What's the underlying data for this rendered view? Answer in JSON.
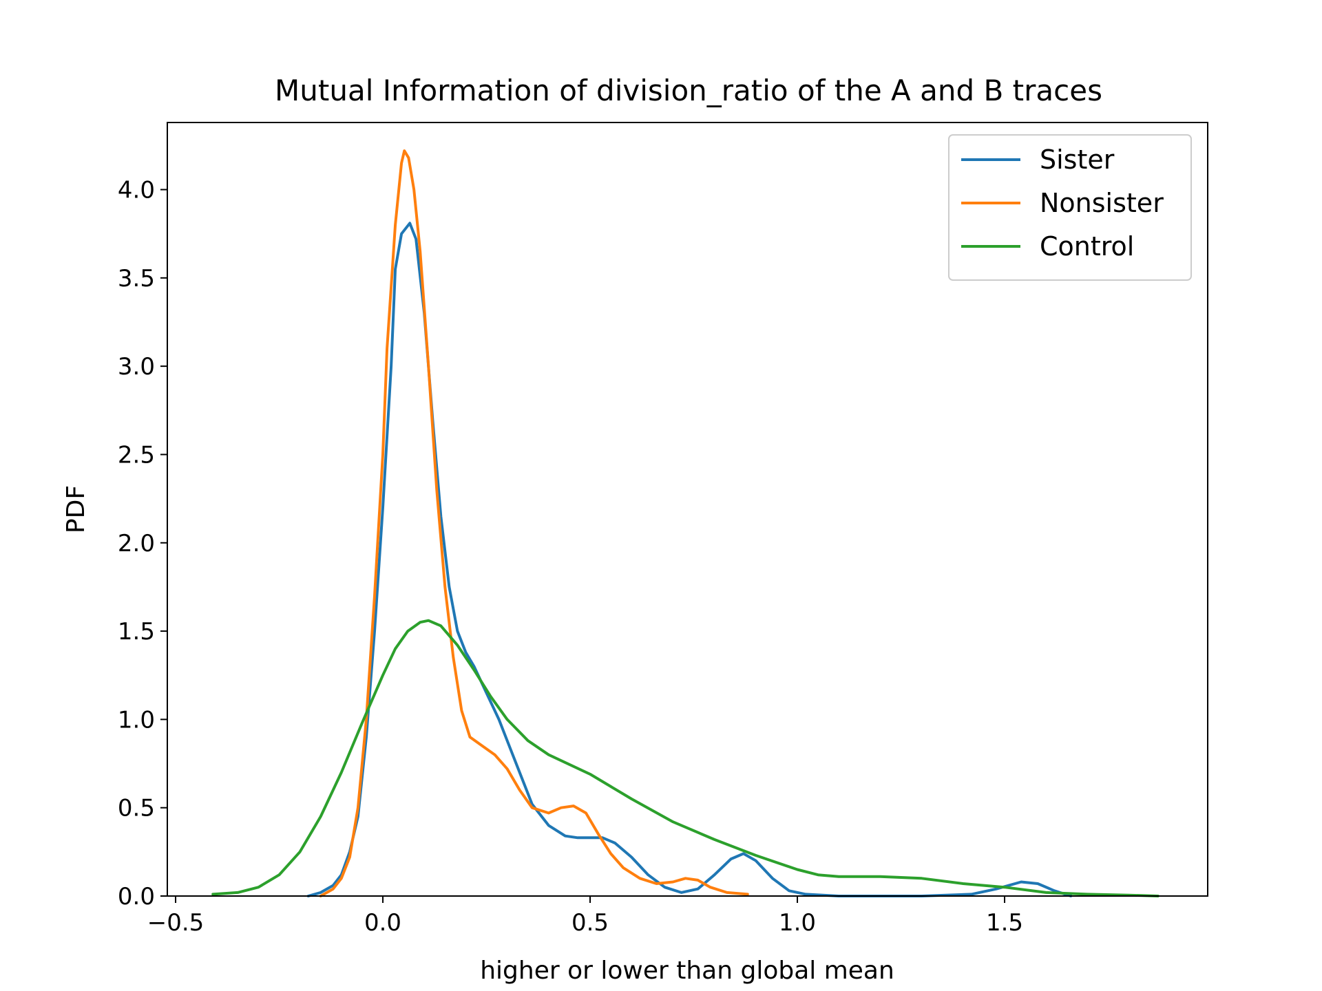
{
  "chart_data": {
    "type": "line",
    "title": "Mutual Information of division_ratio of the A and B traces",
    "xlabel": "higher or lower than global mean",
    "ylabel": "PDF",
    "xlim": [
      -0.52,
      1.99
    ],
    "ylim": [
      0,
      4.38
    ],
    "xticks": [
      -0.5,
      0.0,
      0.5,
      1.0,
      1.5
    ],
    "xtick_labels": [
      "−0.5",
      "0.0",
      "0.5",
      "1.0",
      "1.5"
    ],
    "yticks": [
      0.0,
      0.5,
      1.0,
      1.5,
      2.0,
      2.5,
      3.0,
      3.5,
      4.0
    ],
    "ytick_labels": [
      "0.0",
      "0.5",
      "1.0",
      "1.5",
      "2.0",
      "2.5",
      "3.0",
      "3.5",
      "4.0"
    ],
    "grid": false,
    "legend_position": "top-right",
    "series": [
      {
        "name": "Sister",
        "color": "#1f77b4",
        "points": [
          [
            -0.18,
            0.0
          ],
          [
            -0.15,
            0.02
          ],
          [
            -0.12,
            0.06
          ],
          [
            -0.1,
            0.12
          ],
          [
            -0.08,
            0.25
          ],
          [
            -0.06,
            0.45
          ],
          [
            -0.04,
            0.9
          ],
          [
            -0.02,
            1.5
          ],
          [
            0.0,
            2.2
          ],
          [
            0.02,
            3.0
          ],
          [
            0.03,
            3.55
          ],
          [
            0.045,
            3.75
          ],
          [
            0.065,
            3.81
          ],
          [
            0.08,
            3.72
          ],
          [
            0.1,
            3.3
          ],
          [
            0.12,
            2.7
          ],
          [
            0.14,
            2.15
          ],
          [
            0.16,
            1.75
          ],
          [
            0.18,
            1.5
          ],
          [
            0.2,
            1.38
          ],
          [
            0.22,
            1.3
          ],
          [
            0.25,
            1.15
          ],
          [
            0.28,
            1.0
          ],
          [
            0.3,
            0.88
          ],
          [
            0.33,
            0.7
          ],
          [
            0.36,
            0.52
          ],
          [
            0.4,
            0.4
          ],
          [
            0.44,
            0.34
          ],
          [
            0.47,
            0.33
          ],
          [
            0.5,
            0.33
          ],
          [
            0.53,
            0.33
          ],
          [
            0.56,
            0.3
          ],
          [
            0.6,
            0.22
          ],
          [
            0.64,
            0.12
          ],
          [
            0.68,
            0.05
          ],
          [
            0.72,
            0.02
          ],
          [
            0.76,
            0.04
          ],
          [
            0.8,
            0.12
          ],
          [
            0.84,
            0.21
          ],
          [
            0.87,
            0.24
          ],
          [
            0.9,
            0.2
          ],
          [
            0.94,
            0.1
          ],
          [
            0.98,
            0.03
          ],
          [
            1.02,
            0.01
          ],
          [
            1.1,
            0.0
          ],
          [
            1.3,
            0.0
          ],
          [
            1.42,
            0.01
          ],
          [
            1.48,
            0.04
          ],
          [
            1.54,
            0.08
          ],
          [
            1.58,
            0.07
          ],
          [
            1.62,
            0.03
          ],
          [
            1.66,
            0.0
          ]
        ]
      },
      {
        "name": "Nonsister",
        "color": "#ff7f0e",
        "points": [
          [
            -0.15,
            0.0
          ],
          [
            -0.12,
            0.04
          ],
          [
            -0.1,
            0.1
          ],
          [
            -0.08,
            0.22
          ],
          [
            -0.06,
            0.5
          ],
          [
            -0.04,
            1.0
          ],
          [
            -0.02,
            1.7
          ],
          [
            0.0,
            2.5
          ],
          [
            0.01,
            3.1
          ],
          [
            0.03,
            3.8
          ],
          [
            0.045,
            4.15
          ],
          [
            0.052,
            4.22
          ],
          [
            0.062,
            4.18
          ],
          [
            0.075,
            4.0
          ],
          [
            0.09,
            3.65
          ],
          [
            0.11,
            3.0
          ],
          [
            0.13,
            2.3
          ],
          [
            0.15,
            1.75
          ],
          [
            0.17,
            1.35
          ],
          [
            0.19,
            1.05
          ],
          [
            0.21,
            0.9
          ],
          [
            0.24,
            0.85
          ],
          [
            0.27,
            0.8
          ],
          [
            0.3,
            0.72
          ],
          [
            0.33,
            0.6
          ],
          [
            0.36,
            0.5
          ],
          [
            0.4,
            0.47
          ],
          [
            0.43,
            0.5
          ],
          [
            0.46,
            0.51
          ],
          [
            0.49,
            0.47
          ],
          [
            0.52,
            0.35
          ],
          [
            0.55,
            0.24
          ],
          [
            0.58,
            0.16
          ],
          [
            0.62,
            0.1
          ],
          [
            0.66,
            0.07
          ],
          [
            0.7,
            0.08
          ],
          [
            0.73,
            0.1
          ],
          [
            0.76,
            0.09
          ],
          [
            0.79,
            0.05
          ],
          [
            0.83,
            0.02
          ],
          [
            0.88,
            0.01
          ]
        ]
      },
      {
        "name": "Control",
        "color": "#2ca02c",
        "points": [
          [
            -0.41,
            0.01
          ],
          [
            -0.35,
            0.02
          ],
          [
            -0.3,
            0.05
          ],
          [
            -0.25,
            0.12
          ],
          [
            -0.2,
            0.25
          ],
          [
            -0.15,
            0.45
          ],
          [
            -0.1,
            0.7
          ],
          [
            -0.05,
            0.98
          ],
          [
            0.0,
            1.25
          ],
          [
            0.03,
            1.4
          ],
          [
            0.06,
            1.5
          ],
          [
            0.09,
            1.55
          ],
          [
            0.11,
            1.56
          ],
          [
            0.14,
            1.53
          ],
          [
            0.18,
            1.42
          ],
          [
            0.22,
            1.28
          ],
          [
            0.26,
            1.13
          ],
          [
            0.3,
            1.0
          ],
          [
            0.35,
            0.88
          ],
          [
            0.4,
            0.8
          ],
          [
            0.5,
            0.69
          ],
          [
            0.6,
            0.55
          ],
          [
            0.7,
            0.42
          ],
          [
            0.8,
            0.32
          ],
          [
            0.9,
            0.23
          ],
          [
            1.0,
            0.15
          ],
          [
            1.05,
            0.12
          ],
          [
            1.1,
            0.11
          ],
          [
            1.2,
            0.11
          ],
          [
            1.3,
            0.1
          ],
          [
            1.4,
            0.07
          ],
          [
            1.5,
            0.05
          ],
          [
            1.6,
            0.02
          ],
          [
            1.7,
            0.01
          ],
          [
            1.8,
            0.005
          ],
          [
            1.87,
            0.0
          ]
        ]
      }
    ]
  }
}
